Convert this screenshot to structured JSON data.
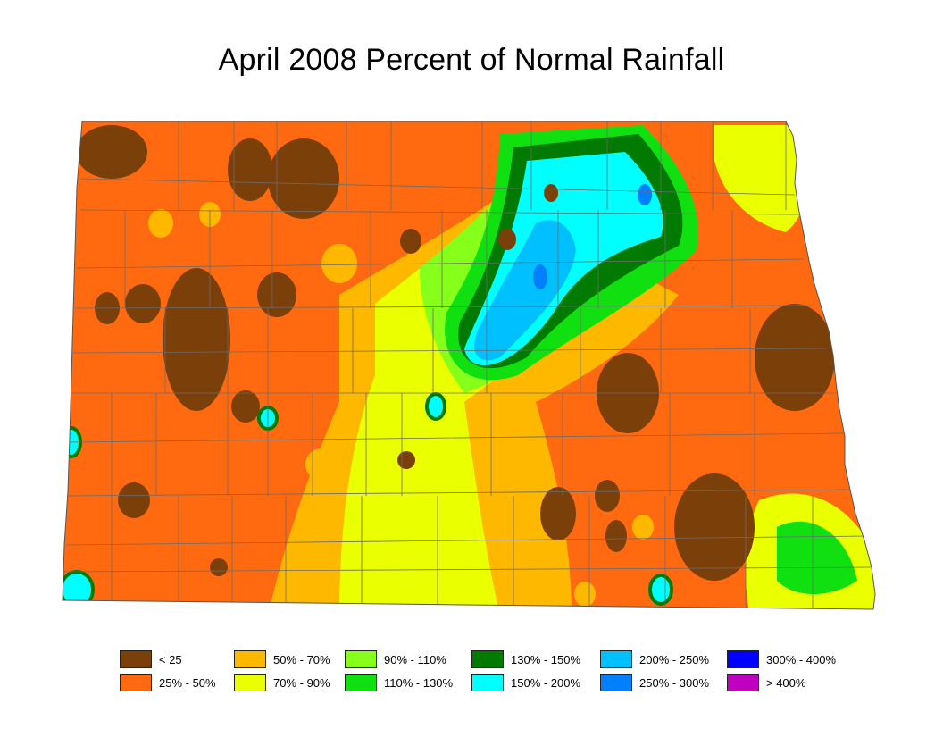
{
  "title": "April 2008 Percent of Normal Rainfall",
  "legend": [
    {
      "label": "< 25",
      "color": "#7b3f0a"
    },
    {
      "label": "25% - 50%",
      "color": "#ff6a10"
    },
    {
      "label": "50% - 70%",
      "color": "#ffb800"
    },
    {
      "label": "70% - 90%",
      "color": "#eaff00"
    },
    {
      "label": "90% - 110%",
      "color": "#86ff1a"
    },
    {
      "label": "110% - 130%",
      "color": "#10e010"
    },
    {
      "label": "130% - 150%",
      "color": "#007a00"
    },
    {
      "label": "150% - 200%",
      "color": "#00ffff"
    },
    {
      "label": "200% - 250%",
      "color": "#00c0ff"
    },
    {
      "label": "250% - 300%",
      "color": "#0080ff"
    },
    {
      "label": "300% - 400%",
      "color": "#0000ff"
    },
    {
      "label": "> 400%",
      "color": "#c000c0"
    }
  ]
}
